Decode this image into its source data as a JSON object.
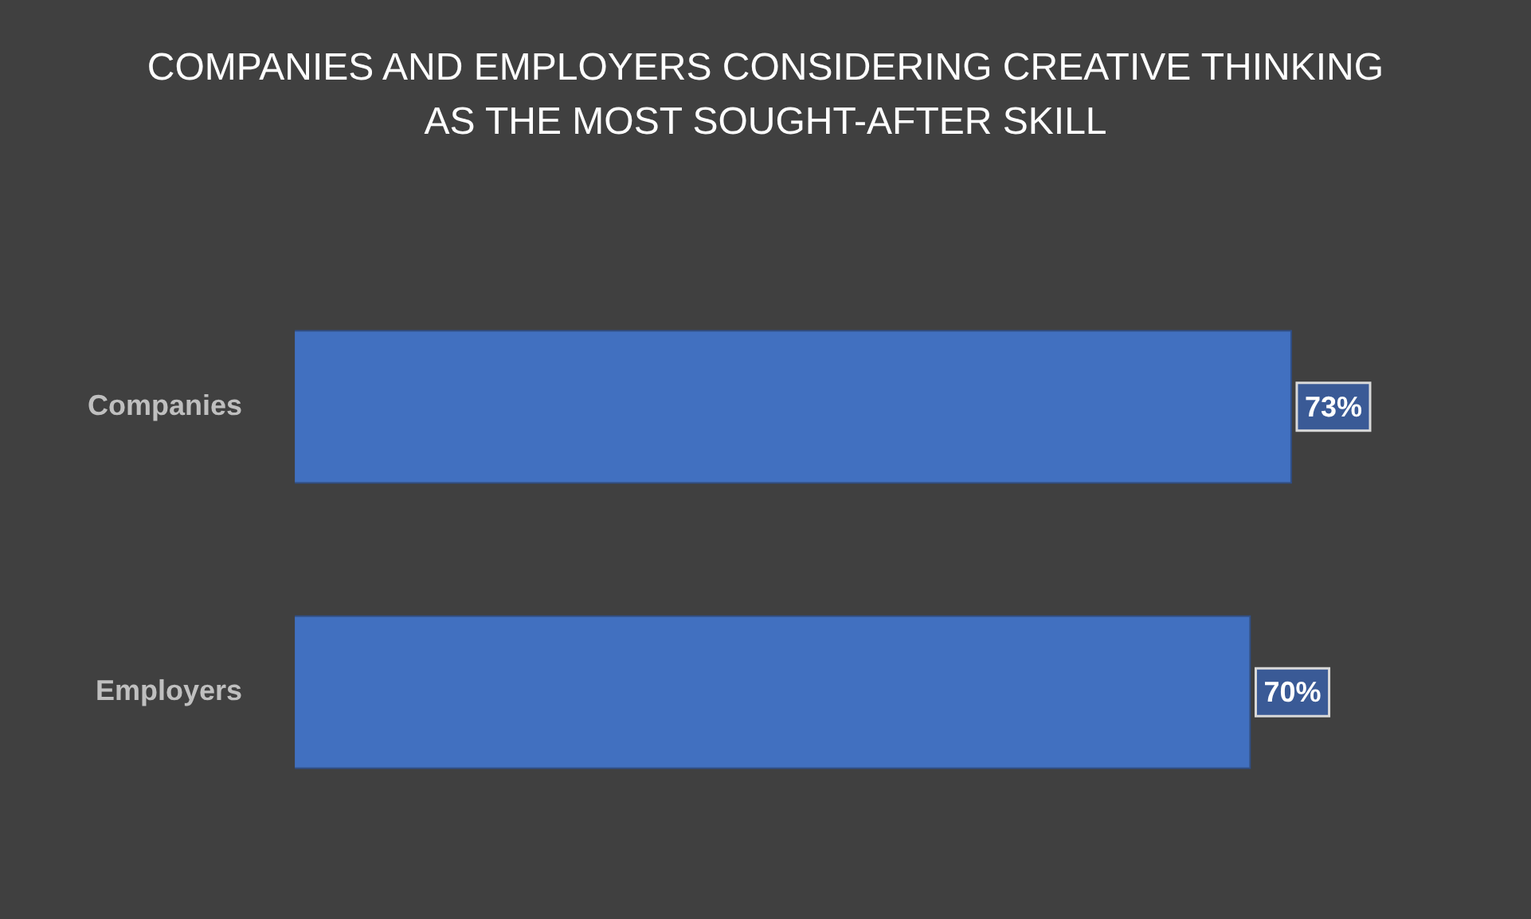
{
  "chart_data": {
    "type": "bar",
    "orientation": "horizontal",
    "title": "COMPANIES AND EMPLOYERS CONSIDERING CREATIVE THINKING AS THE MOST SOUGHT-AFTER SKILL",
    "categories": [
      "Companies",
      "Employers"
    ],
    "values": [
      73,
      70
    ],
    "value_labels": [
      "73%",
      "70%"
    ],
    "color": "#4170c0",
    "legend": false
  }
}
